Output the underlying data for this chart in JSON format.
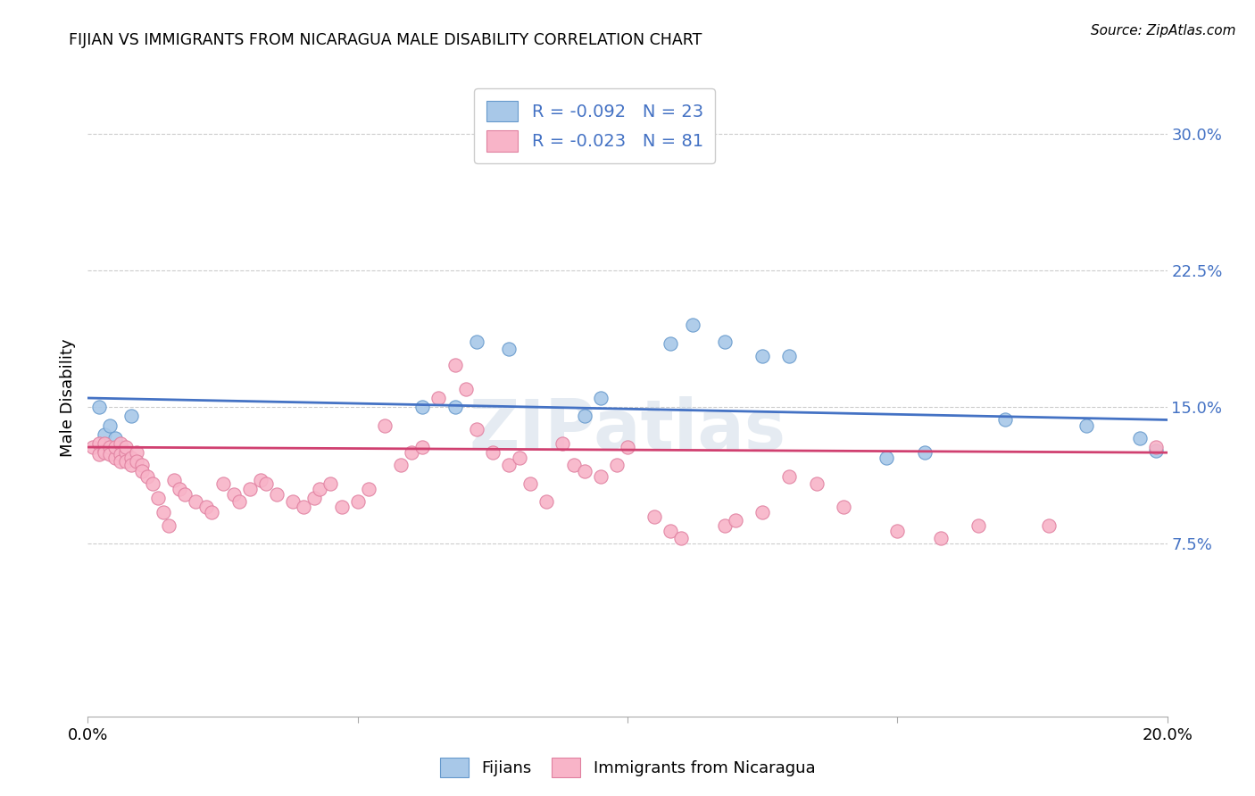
{
  "title": "FIJIAN VS IMMIGRANTS FROM NICARAGUA MALE DISABILITY CORRELATION CHART",
  "source": "Source: ZipAtlas.com",
  "ylabel": "Male Disability",
  "xlim": [
    0.0,
    0.2
  ],
  "ylim": [
    -0.02,
    0.33
  ],
  "yticks": [
    0.075,
    0.15,
    0.225,
    0.3
  ],
  "ytick_labels": [
    "7.5%",
    "15.0%",
    "22.5%",
    "30.0%"
  ],
  "xticks": [
    0.0,
    0.05,
    0.1,
    0.15,
    0.2
  ],
  "xtick_labels": [
    "0.0%",
    "",
    "",
    "",
    "20.0%"
  ],
  "fijian_color": "#a8c8e8",
  "nicaragua_color": "#f8b4c8",
  "fijian_edge_color": "#6699cc",
  "nicaragua_edge_color": "#e080a0",
  "fijian_line_color": "#4472c4",
  "nicaragua_line_color": "#d04070",
  "R_fijian": -0.092,
  "N_fijian": 23,
  "R_nicaragua": -0.023,
  "N_nicaragua": 81,
  "legend_color": "#4472c4",
  "fijian_x": [
    0.002,
    0.003,
    0.004,
    0.005,
    0.006,
    0.008,
    0.062,
    0.068,
    0.072,
    0.078,
    0.092,
    0.095,
    0.108,
    0.112,
    0.118,
    0.125,
    0.13,
    0.148,
    0.155,
    0.17,
    0.185,
    0.195,
    0.198
  ],
  "fijian_y": [
    0.15,
    0.135,
    0.14,
    0.133,
    0.128,
    0.145,
    0.15,
    0.15,
    0.186,
    0.182,
    0.145,
    0.155,
    0.185,
    0.195,
    0.186,
    0.178,
    0.178,
    0.122,
    0.125,
    0.143,
    0.14,
    0.133,
    0.126
  ],
  "nicaragua_x": [
    0.001,
    0.002,
    0.002,
    0.003,
    0.003,
    0.003,
    0.004,
    0.004,
    0.005,
    0.005,
    0.006,
    0.006,
    0.006,
    0.007,
    0.007,
    0.007,
    0.008,
    0.008,
    0.009,
    0.009,
    0.01,
    0.01,
    0.011,
    0.012,
    0.013,
    0.014,
    0.015,
    0.016,
    0.017,
    0.018,
    0.02,
    0.022,
    0.023,
    0.025,
    0.027,
    0.028,
    0.03,
    0.032,
    0.033,
    0.035,
    0.038,
    0.04,
    0.042,
    0.043,
    0.045,
    0.047,
    0.05,
    0.052,
    0.055,
    0.058,
    0.06,
    0.062,
    0.065,
    0.068,
    0.07,
    0.072,
    0.075,
    0.078,
    0.08,
    0.082,
    0.085,
    0.088,
    0.09,
    0.092,
    0.095,
    0.098,
    0.1,
    0.105,
    0.108,
    0.11,
    0.118,
    0.12,
    0.125,
    0.13,
    0.135,
    0.14,
    0.15,
    0.158,
    0.165,
    0.178,
    0.198
  ],
  "nicaragua_y": [
    0.128,
    0.13,
    0.124,
    0.126,
    0.13,
    0.125,
    0.128,
    0.124,
    0.122,
    0.128,
    0.13,
    0.124,
    0.12,
    0.125,
    0.128,
    0.12,
    0.122,
    0.118,
    0.125,
    0.12,
    0.118,
    0.115,
    0.112,
    0.108,
    0.1,
    0.092,
    0.085,
    0.11,
    0.105,
    0.102,
    0.098,
    0.095,
    0.092,
    0.108,
    0.102,
    0.098,
    0.105,
    0.11,
    0.108,
    0.102,
    0.098,
    0.095,
    0.1,
    0.105,
    0.108,
    0.095,
    0.098,
    0.105,
    0.14,
    0.118,
    0.125,
    0.128,
    0.155,
    0.173,
    0.16,
    0.138,
    0.125,
    0.118,
    0.122,
    0.108,
    0.098,
    0.13,
    0.118,
    0.115,
    0.112,
    0.118,
    0.128,
    0.09,
    0.082,
    0.078,
    0.085,
    0.088,
    0.092,
    0.112,
    0.108,
    0.095,
    0.082,
    0.078,
    0.085,
    0.085,
    0.128
  ],
  "fijian_line_y0": 0.155,
  "fijian_line_y1": 0.143,
  "nicaragua_line_y0": 0.128,
  "nicaragua_line_y1": 0.125,
  "watermark": "ZIPatlas"
}
